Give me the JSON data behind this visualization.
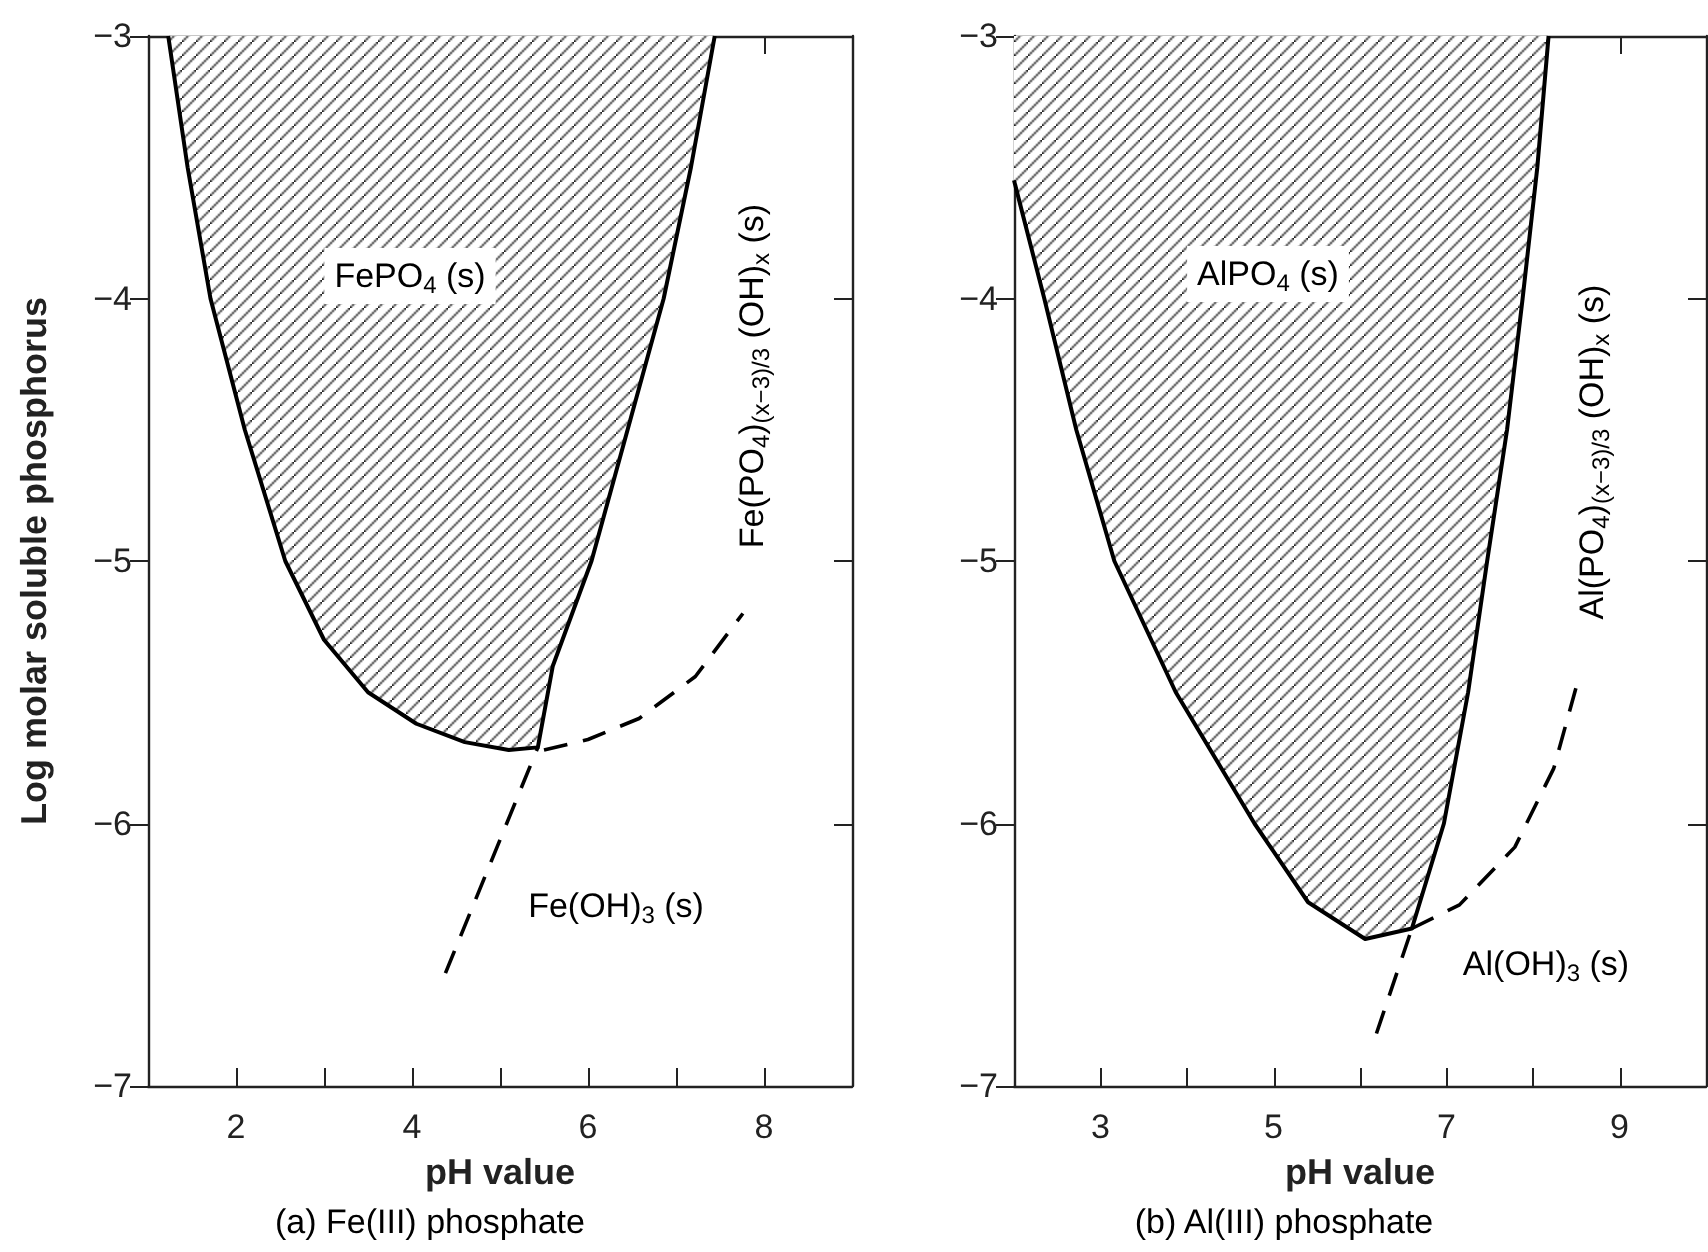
{
  "chart_data": [
    {
      "type": "area",
      "xlabel": "pH value",
      "ylabel": "Log molar soluble phosphorus",
      "xlim": [
        1,
        9
      ],
      "xticks": [
        2,
        {
          "value": 3,
          "label": null
        },
        4,
        {
          "value": 5,
          "label": null
        },
        6,
        {
          "value": 7,
          "label": null
        },
        8
      ],
      "ylim": [
        -7,
        -3
      ],
      "yticks": [
        -7,
        -6,
        -5,
        -4,
        -3
      ],
      "grid": false,
      "marker": "none",
      "series": [
        {
          "color": "#000000",
          "line_style": "solid",
          "x": [
            1.23,
            1.45,
            1.71,
            2.1,
            2.56,
            3.0,
            3.5,
            4.05,
            4.6,
            5.1,
            5.43,
            5.6,
            6.04,
            6.45,
            6.86,
            7.17,
            7.44
          ],
          "values": [
            -3,
            -3.5,
            -4,
            -4.5,
            -5,
            -5.3,
            -5.5,
            -5.62,
            -5.69,
            -5.72,
            -5.71,
            -5.4,
            -5,
            -4.5,
            -4,
            -3.5,
            -3
          ]
        },
        {
          "type": "line",
          "color": "#000000",
          "line_style": "dashed",
          "x": [
            4.38,
            5.43
          ],
          "values": [
            -6.57,
            -5.71
          ]
        },
        {
          "type": "line",
          "color": "#000000",
          "line_style": "dashed",
          "x": [
            5.5,
            6.0,
            6.58,
            7.22,
            7.76
          ],
          "values": [
            -5.72,
            -5.68,
            -5.6,
            -5.44,
            -5.2
          ]
        }
      ],
      "annotations": [
        "FePO$_{4}$ (s)",
        "Fe(OH)$_{3}$ (s)",
        "Fe(PO$_{4}$)$_{(x−3)/3}$ (OH)$_{x}$ (s)",
        "(a) Fe(III) phosphate"
      ]
    },
    {
      "type": "area",
      "xlabel": "pH value",
      "xlim": [
        2,
        10
      ],
      "xticks": [
        3,
        {
          "value": 4,
          "label": null
        },
        5,
        {
          "value": 6,
          "label": null
        },
        7,
        {
          "value": 8,
          "label": null
        },
        9
      ],
      "ylim": [
        -7,
        -3
      ],
      "yticks": [
        -7,
        -6,
        -5,
        -4,
        -3
      ],
      "grid": false,
      "marker": "none",
      "series": [
        {
          "color": "#000000",
          "line_style": "solid",
          "x": [
            2.0,
            2.35,
            2.72,
            3.16,
            3.87,
            4.78,
            5.4,
            6.06,
            6.6,
            6.97,
            7.25,
            7.47,
            7.7,
            7.88,
            8.05,
            8.18
          ],
          "values": [
            -3.55,
            -4,
            -4.5,
            -5,
            -5.5,
            -6,
            -6.3,
            -6.44,
            -6.4,
            -6,
            -5.5,
            -5,
            -4.5,
            -4,
            -3.5,
            -3
          ]
        },
        {
          "type": "line",
          "color": "#000000",
          "line_style": "dashed",
          "x": [
            6.19,
            6.6
          ],
          "values": [
            -6.8,
            -6.4
          ]
        },
        {
          "type": "line",
          "color": "#000000",
          "line_style": "dashed",
          "x": [
            6.6,
            7.15,
            7.79,
            8.24,
            8.5
          ],
          "values": [
            -6.4,
            -6.31,
            -6.09,
            -5.79,
            -5.48
          ]
        }
      ],
      "annotations": [
        "AlPO$_{4}$ (s)",
        "Al(OH)$_{3}$ (s)",
        "Al(PO$_{4}$)$_{(x−3)/3}$ (OH)$_{x}$ (s)",
        "(b) Al(III) phosphate"
      ]
    }
  ]
}
